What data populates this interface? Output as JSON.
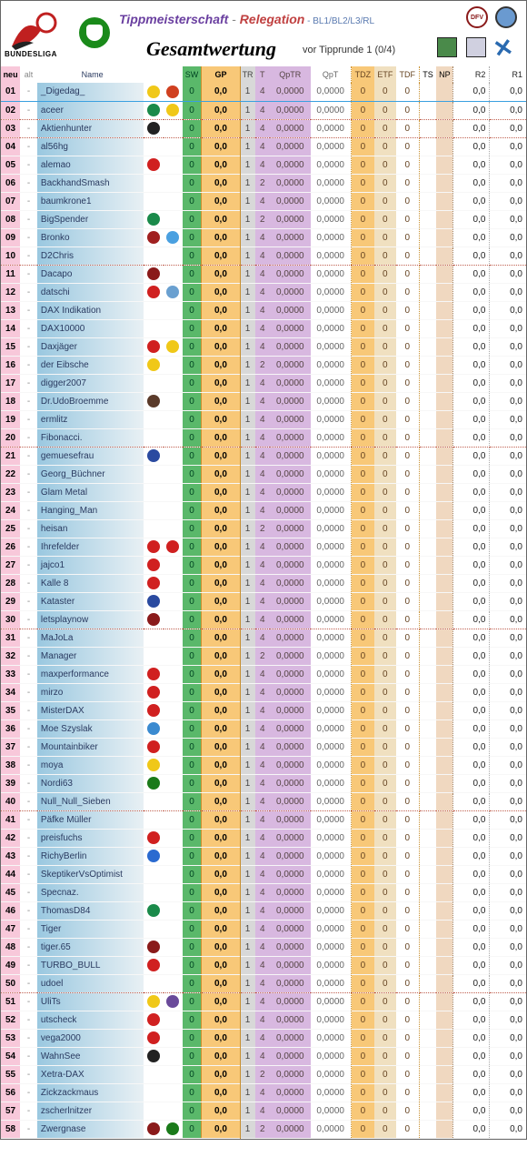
{
  "header": {
    "bundesliga_label": "BUNDESLIGA",
    "title_part1": "Tippmeisterschaft",
    "title_dash": " - ",
    "title_part2": "Relegation",
    "title_suffix": " - BL1/BL2/L3/RL",
    "main_title": "Gesamtwertung",
    "sub_title": "vor Tipprunde 1 (0/4)",
    "badge1_text": "DFV"
  },
  "columns": {
    "neu": "neu",
    "alt": "alt",
    "name": "Name",
    "sw": "SW",
    "gp": "GP",
    "tr": "TR",
    "t": "T",
    "qptr": "QpTR",
    "qpt": "QpT",
    "tdz": "TDZ",
    "etf": "ETF",
    "tdf": "TDF",
    "ts": "TS",
    "np": "NP",
    "r2": "R2",
    "r1": "R1"
  },
  "defaults": {
    "alt": "-",
    "sw": "0",
    "gp": "0,0",
    "tr": "1",
    "qptr": "0,0000",
    "qpt": "0,0000",
    "tdz": "0",
    "etf": "0",
    "tdf": "0",
    "ts": "",
    "np": "",
    "r2": "0,0",
    "r1": "0,0"
  },
  "club_colors": {
    "dynamo": "#f0c818",
    "star": "#d04020",
    "bvb": "#f0c818",
    "werder": "#1a8a4a",
    "gladbach": "#222",
    "koeln": "#d02020",
    "sprite": "#4aa0e0",
    "freiburg": "#a02020",
    "blue": "#2a4aa0",
    "nurnberg": "#8a1a1a",
    "augsburg": "#d02020",
    "1860": "#6aa0d0",
    "mainz": "#d02020",
    "dd": "#f0c818",
    "pauli": "#5a3a2a",
    "arminia": "#2a4aa0",
    "union": "#d02020",
    "stuttgart": "#d02020",
    "bayern": "#d02020",
    "leverkusen": "#d02020",
    "hertha": "#2a6ad0",
    "rostock": "#3a8ad0",
    "hannover": "#1a7a1a",
    "aachen": "#f0c818",
    "violet": "#6a4a9a"
  },
  "rows": [
    {
      "n": "01",
      "name": "_Digedag_",
      "ic1": "dynamo",
      "ic2": "star",
      "t": "4",
      "sep": false,
      "hl": true
    },
    {
      "n": "02",
      "name": "aceer",
      "ic1": "werder",
      "ic2": "bvb",
      "t": "4",
      "sep": true,
      "hl": false
    },
    {
      "n": "03",
      "name": "Aktienhunter",
      "ic1": "gladbach",
      "t": "4",
      "sep": true
    },
    {
      "n": "04",
      "name": "al56hg",
      "t": "4"
    },
    {
      "n": "05",
      "name": "alemao",
      "ic1": "koeln",
      "t": "4"
    },
    {
      "n": "06",
      "name": "BackhandSmash",
      "t": "2"
    },
    {
      "n": "07",
      "name": "baumkrone1",
      "t": "4"
    },
    {
      "n": "08",
      "name": "BigSpender",
      "ic1": "werder",
      "t": "2"
    },
    {
      "n": "09",
      "name": "Bronko",
      "ic1": "freiburg",
      "ic2": "sprite",
      "t": "4"
    },
    {
      "n": "10",
      "name": "D2Chris",
      "t": "4",
      "sep": true
    },
    {
      "n": "11",
      "name": "Dacapo",
      "ic1": "nurnberg",
      "t": "4"
    },
    {
      "n": "12",
      "name": "datschi",
      "ic1": "augsburg",
      "ic2": "1860",
      "t": "4"
    },
    {
      "n": "13",
      "name": "DAX Indikation",
      "t": "4"
    },
    {
      "n": "14",
      "name": "DAX10000",
      "t": "4"
    },
    {
      "n": "15",
      "name": "Daxjäger",
      "ic1": "mainz",
      "ic2": "dd",
      "t": "4"
    },
    {
      "n": "16",
      "name": "der Eibsche",
      "ic1": "dd",
      "t": "2"
    },
    {
      "n": "17",
      "name": "digger2007",
      "t": "4"
    },
    {
      "n": "18",
      "name": "Dr.UdoBroemme",
      "ic1": "pauli",
      "t": "4"
    },
    {
      "n": "19",
      "name": "ermlitz",
      "t": "4"
    },
    {
      "n": "20",
      "name": "Fibonacci.",
      "t": "4",
      "sep": true
    },
    {
      "n": "21",
      "name": "gemuesefrau",
      "ic1": "arminia",
      "t": "4"
    },
    {
      "n": "22",
      "name": "Georg_Büchner",
      "t": "4"
    },
    {
      "n": "23",
      "name": "Glam Metal",
      "t": "4"
    },
    {
      "n": "24",
      "name": "Hanging_Man",
      "t": "4"
    },
    {
      "n": "25",
      "name": "heisan",
      "t": "2"
    },
    {
      "n": "26",
      "name": "Ihrefelder",
      "ic1": "union",
      "ic2": "koeln",
      "t": "4"
    },
    {
      "n": "27",
      "name": "jajco1",
      "ic1": "stuttgart",
      "t": "4"
    },
    {
      "n": "28",
      "name": "Kalle 8",
      "ic1": "bayern",
      "t": "4"
    },
    {
      "n": "29",
      "name": "Kataster",
      "ic1": "blue",
      "t": "4"
    },
    {
      "n": "30",
      "name": "letsplaynow",
      "ic1": "nurnberg",
      "t": "4",
      "sep": true
    },
    {
      "n": "31",
      "name": "MaJoLa",
      "t": "4"
    },
    {
      "n": "32",
      "name": "Manager",
      "t": "2"
    },
    {
      "n": "33",
      "name": "maxperformance",
      "ic1": "bayern",
      "t": "4"
    },
    {
      "n": "34",
      "name": "mirzo",
      "ic1": "leverkusen",
      "t": "4"
    },
    {
      "n": "35",
      "name": "MisterDAX",
      "ic1": "koeln",
      "t": "4"
    },
    {
      "n": "36",
      "name": "Moe Szyslak",
      "ic1": "rostock",
      "t": "4"
    },
    {
      "n": "37",
      "name": "Mountainbiker",
      "ic1": "koeln",
      "t": "4"
    },
    {
      "n": "38",
      "name": "moya",
      "ic1": "bvb",
      "t": "4"
    },
    {
      "n": "39",
      "name": "Nordi63",
      "ic1": "hannover",
      "t": "4"
    },
    {
      "n": "40",
      "name": "Null_Null_Sieben",
      "t": "4",
      "sep": true
    },
    {
      "n": "41",
      "name": "Päfke Müller",
      "t": "4"
    },
    {
      "n": "42",
      "name": "preisfuchs",
      "ic1": "bayern",
      "t": "4"
    },
    {
      "n": "43",
      "name": "RichyBerlin",
      "ic1": "hertha",
      "t": "4"
    },
    {
      "n": "44",
      "name": "SkeptikerVsOptimist",
      "t": "4"
    },
    {
      "n": "45",
      "name": "Specnaz.",
      "t": "4"
    },
    {
      "n": "46",
      "name": "ThomasD84",
      "ic1": "werder",
      "t": "4"
    },
    {
      "n": "47",
      "name": "Tiger",
      "t": "4"
    },
    {
      "n": "48",
      "name": "tiger.65",
      "ic1": "nurnberg",
      "t": "4"
    },
    {
      "n": "49",
      "name": "TURBO_BULL",
      "ic1": "koeln",
      "t": "4"
    },
    {
      "n": "50",
      "name": "udoel",
      "t": "4",
      "sep": true
    },
    {
      "n": "51",
      "name": "UliTs",
      "ic1": "aachen",
      "ic2": "violet",
      "t": "4"
    },
    {
      "n": "52",
      "name": "utscheck",
      "ic1": "bayern",
      "t": "4"
    },
    {
      "n": "53",
      "name": "vega2000",
      "ic1": "bayern",
      "t": "4"
    },
    {
      "n": "54",
      "name": "WahnSee",
      "ic1": "gladbach",
      "t": "4"
    },
    {
      "n": "55",
      "name": "Xetra-DAX",
      "t": "2"
    },
    {
      "n": "56",
      "name": "Zickzackmaus",
      "t": "4"
    },
    {
      "n": "57",
      "name": "zscherlnitzer",
      "t": "4"
    },
    {
      "n": "58",
      "name": "Zwergnase",
      "ic1": "nurnberg",
      "ic2": "hannover",
      "t": "2"
    }
  ]
}
